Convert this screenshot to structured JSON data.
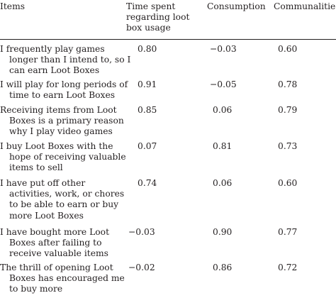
{
  "table": {
    "headers": {
      "items": "Items",
      "time_spent": [
        "Time spent",
        "regarding loot",
        "box usage"
      ],
      "consumption": "Consumption",
      "communalities": "Communalities"
    },
    "rows": [
      {
        "item": [
          "I frequently play games",
          "longer than I intend to, so I",
          "can earn Loot Boxes"
        ],
        "time_spent": "0.80",
        "consumption": "−0.03",
        "communalities": "0.60"
      },
      {
        "item": [
          "I will play for long periods of",
          "time to earn Loot Boxes"
        ],
        "time_spent": "0.91",
        "consumption": "−0.05",
        "communalities": "0.78"
      },
      {
        "item": [
          "Receiving items from Loot",
          "Boxes is a primary reason",
          "why I play video games"
        ],
        "time_spent": "0.85",
        "consumption": "0.06",
        "communalities": "0.79"
      },
      {
        "item": [
          "I buy Loot Boxes with the",
          "hope of receiving valuable",
          "items to sell"
        ],
        "time_spent": "0.07",
        "consumption": "0.81",
        "communalities": "0.73"
      },
      {
        "item": [
          "I have put off other",
          "activities, work, or chores",
          "to be able to earn or buy",
          "more Loot Boxes"
        ],
        "time_spent": "0.74",
        "consumption": "0.06",
        "communalities": "0.60"
      },
      {
        "item": [
          "I have bought more Loot",
          "Boxes after failing to",
          "receive valuable items"
        ],
        "time_spent": "−0.03",
        "consumption": "0.90",
        "communalities": "0.77"
      },
      {
        "item": [
          "The thrill of opening Loot",
          "Boxes has encouraged me",
          "to buy more"
        ],
        "time_spent": "−0.02",
        "consumption": "0.86",
        "communalities": "0.72"
      }
    ]
  }
}
